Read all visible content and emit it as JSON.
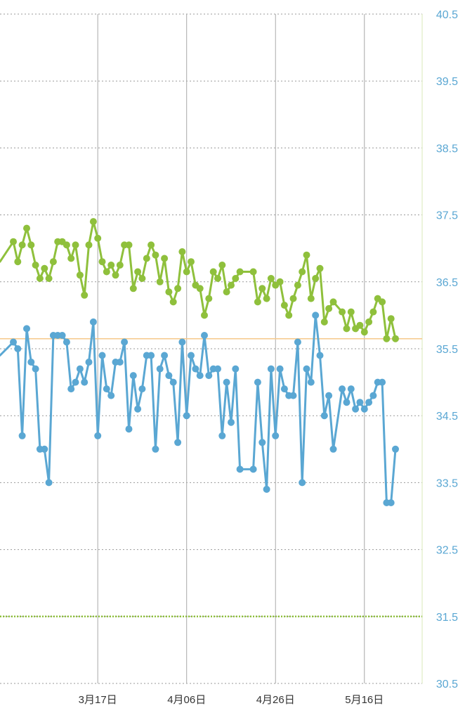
{
  "chart_data": {
    "type": "line",
    "x_axis": {
      "type": "date",
      "start": "2024-02-24",
      "end": "2024-05-29",
      "tick_dates": [
        "2024-03-17",
        "2024-04-06",
        "2024-04-26",
        "2024-05-16"
      ],
      "tick_labels": [
        "3月17日",
        "4月06日",
        "4月26日",
        "5月16日"
      ]
    },
    "y_axis": {
      "position": "right",
      "range": [
        30.5,
        40.5
      ],
      "ticks": [
        30.5,
        31.5,
        32.5,
        33.5,
        34.5,
        35.5,
        36.5,
        37.5,
        38.5,
        39.5,
        40.5
      ],
      "tick_labels": [
        "30.5",
        "31.5",
        "32.5",
        "33.5",
        "34.5",
        "35.5",
        "36.5",
        "37.5",
        "38.5",
        "39.5",
        "40.5"
      ]
    },
    "grid": {
      "horizontal": "dotted",
      "vertical": "solid at x ticks"
    },
    "reference_lines": [
      {
        "y": 35.65,
        "color": "#f6c98a",
        "style": "solid"
      },
      {
        "y": 31.5,
        "color": "#8fc03c",
        "style": "dotted"
      }
    ],
    "series": [
      {
        "color": "#8fc03c",
        "points": [
          [
            "2024-02-24",
            36.8
          ],
          [
            "2024-02-27",
            37.1
          ],
          [
            "2024-02-28",
            36.8
          ],
          [
            "2024-02-29",
            37.05
          ],
          [
            "2024-03-01",
            37.3
          ],
          [
            "2024-03-02",
            37.05
          ],
          [
            "2024-03-03",
            36.75
          ],
          [
            "2024-03-04",
            36.55
          ],
          [
            "2024-03-05",
            36.7
          ],
          [
            "2024-03-06",
            36.55
          ],
          [
            "2024-03-07",
            36.8
          ],
          [
            "2024-03-08",
            37.1
          ],
          [
            "2024-03-09",
            37.1
          ],
          [
            "2024-03-10",
            37.05
          ],
          [
            "2024-03-11",
            36.85
          ],
          [
            "2024-03-12",
            37.05
          ],
          [
            "2024-03-13",
            36.6
          ],
          [
            "2024-03-14",
            36.3
          ],
          [
            "2024-03-15",
            37.05
          ],
          [
            "2024-03-16",
            37.4
          ],
          [
            "2024-03-17",
            37.15
          ],
          [
            "2024-03-18",
            36.8
          ],
          [
            "2024-03-19",
            36.65
          ],
          [
            "2024-03-20",
            36.75
          ],
          [
            "2024-03-21",
            36.6
          ],
          [
            "2024-03-22",
            36.75
          ],
          [
            "2024-03-23",
            37.05
          ],
          [
            "2024-03-24",
            37.05
          ],
          [
            "2024-03-25",
            36.4
          ],
          [
            "2024-03-26",
            36.65
          ],
          [
            "2024-03-27",
            36.55
          ],
          [
            "2024-03-28",
            36.85
          ],
          [
            "2024-03-29",
            37.05
          ],
          [
            "2024-03-30",
            36.9
          ],
          [
            "2024-03-31",
            36.5
          ],
          [
            "2024-04-01",
            36.85
          ],
          [
            "2024-04-02",
            36.35
          ],
          [
            "2024-04-03",
            36.2
          ],
          [
            "2024-04-04",
            36.4
          ],
          [
            "2024-04-05",
            36.95
          ],
          [
            "2024-04-06",
            36.65
          ],
          [
            "2024-04-07",
            36.8
          ],
          [
            "2024-04-08",
            36.45
          ],
          [
            "2024-04-09",
            36.4
          ],
          [
            "2024-04-10",
            36.0
          ],
          [
            "2024-04-11",
            36.25
          ],
          [
            "2024-04-12",
            36.65
          ],
          [
            "2024-04-13",
            36.55
          ],
          [
            "2024-04-14",
            36.75
          ],
          [
            "2024-04-15",
            36.35
          ],
          [
            "2024-04-16",
            36.45
          ],
          [
            "2024-04-17",
            36.55
          ],
          [
            "2024-04-18",
            36.65
          ],
          [
            "2024-04-21",
            36.65
          ],
          [
            "2024-04-22",
            36.2
          ],
          [
            "2024-04-23",
            36.4
          ],
          [
            "2024-04-24",
            36.25
          ],
          [
            "2024-04-25",
            36.55
          ],
          [
            "2024-04-26",
            36.45
          ],
          [
            "2024-04-27",
            36.5
          ],
          [
            "2024-04-28",
            36.15
          ],
          [
            "2024-04-29",
            36.0
          ],
          [
            "2024-04-30",
            36.25
          ],
          [
            "2024-05-01",
            36.45
          ],
          [
            "2024-05-02",
            36.65
          ],
          [
            "2024-05-03",
            36.9
          ],
          [
            "2024-05-04",
            36.25
          ],
          [
            "2024-05-05",
            36.55
          ],
          [
            "2024-05-06",
            36.7
          ],
          [
            "2024-05-07",
            35.9
          ],
          [
            "2024-05-08",
            36.1
          ],
          [
            "2024-05-09",
            36.2
          ],
          [
            "2024-05-11",
            36.05
          ],
          [
            "2024-05-12",
            35.8
          ],
          [
            "2024-05-13",
            36.05
          ],
          [
            "2024-05-14",
            35.8
          ],
          [
            "2024-05-15",
            35.85
          ],
          [
            "2024-05-16",
            35.75
          ],
          [
            "2024-05-17",
            35.9
          ],
          [
            "2024-05-18",
            36.05
          ],
          [
            "2024-05-19",
            36.25
          ],
          [
            "2024-05-20",
            36.2
          ],
          [
            "2024-05-21",
            35.65
          ],
          [
            "2024-05-22",
            35.95
          ],
          [
            "2024-05-23",
            35.65
          ]
        ]
      },
      {
        "color": "#5aa7d3",
        "points": [
          [
            "2024-02-24",
            35.4
          ],
          [
            "2024-02-27",
            35.6
          ],
          [
            "2024-02-28",
            35.5
          ],
          [
            "2024-02-29",
            34.2
          ],
          [
            "2024-03-01",
            35.8
          ],
          [
            "2024-03-02",
            35.3
          ],
          [
            "2024-03-03",
            35.2
          ],
          [
            "2024-03-04",
            34.0
          ],
          [
            "2024-03-05",
            34.0
          ],
          [
            "2024-03-06",
            33.5
          ],
          [
            "2024-03-07",
            35.7
          ],
          [
            "2024-03-08",
            35.7
          ],
          [
            "2024-03-09",
            35.7
          ],
          [
            "2024-03-10",
            35.6
          ],
          [
            "2024-03-11",
            34.9
          ],
          [
            "2024-03-12",
            35.0
          ],
          [
            "2024-03-13",
            35.2
          ],
          [
            "2024-03-14",
            35.0
          ],
          [
            "2024-03-15",
            35.3
          ],
          [
            "2024-03-16",
            35.9
          ],
          [
            "2024-03-17",
            34.2
          ],
          [
            "2024-03-18",
            35.4
          ],
          [
            "2024-03-19",
            34.9
          ],
          [
            "2024-03-20",
            34.8
          ],
          [
            "2024-03-21",
            35.3
          ],
          [
            "2024-03-22",
            35.3
          ],
          [
            "2024-03-23",
            35.6
          ],
          [
            "2024-03-24",
            34.3
          ],
          [
            "2024-03-25",
            35.1
          ],
          [
            "2024-03-26",
            34.6
          ],
          [
            "2024-03-27",
            34.9
          ],
          [
            "2024-03-28",
            35.4
          ],
          [
            "2024-03-29",
            35.4
          ],
          [
            "2024-03-30",
            34.0
          ],
          [
            "2024-03-31",
            35.2
          ],
          [
            "2024-04-01",
            35.4
          ],
          [
            "2024-04-02",
            35.1
          ],
          [
            "2024-04-03",
            35.0
          ],
          [
            "2024-04-04",
            34.1
          ],
          [
            "2024-04-05",
            35.6
          ],
          [
            "2024-04-06",
            34.5
          ],
          [
            "2024-04-07",
            35.4
          ],
          [
            "2024-04-08",
            35.2
          ],
          [
            "2024-04-09",
            35.1
          ],
          [
            "2024-04-10",
            35.7
          ],
          [
            "2024-04-11",
            35.1
          ],
          [
            "2024-04-12",
            35.2
          ],
          [
            "2024-04-13",
            35.2
          ],
          [
            "2024-04-14",
            34.2
          ],
          [
            "2024-04-15",
            35.0
          ],
          [
            "2024-04-16",
            34.4
          ],
          [
            "2024-04-17",
            35.2
          ],
          [
            "2024-04-18",
            33.7
          ],
          [
            "2024-04-21",
            33.7
          ],
          [
            "2024-04-22",
            35.0
          ],
          [
            "2024-04-23",
            34.1
          ],
          [
            "2024-04-24",
            33.4
          ],
          [
            "2024-04-25",
            35.2
          ],
          [
            "2024-04-26",
            34.2
          ],
          [
            "2024-04-27",
            35.2
          ],
          [
            "2024-04-28",
            34.9
          ],
          [
            "2024-04-29",
            34.8
          ],
          [
            "2024-04-30",
            34.8
          ],
          [
            "2024-05-01",
            35.6
          ],
          [
            "2024-05-02",
            33.5
          ],
          [
            "2024-05-03",
            35.2
          ],
          [
            "2024-05-04",
            35.0
          ],
          [
            "2024-05-05",
            36.0
          ],
          [
            "2024-05-06",
            35.4
          ],
          [
            "2024-05-07",
            34.5
          ],
          [
            "2024-05-08",
            34.8
          ],
          [
            "2024-05-09",
            34.0
          ],
          [
            "2024-05-11",
            34.9
          ],
          [
            "2024-05-12",
            34.7
          ],
          [
            "2024-05-13",
            34.9
          ],
          [
            "2024-05-14",
            34.6
          ],
          [
            "2024-05-15",
            34.7
          ],
          [
            "2024-05-16",
            34.6
          ],
          [
            "2024-05-17",
            34.7
          ],
          [
            "2024-05-18",
            34.8
          ],
          [
            "2024-05-19",
            35.0
          ],
          [
            "2024-05-20",
            35.0
          ],
          [
            "2024-05-21",
            33.2
          ],
          [
            "2024-05-22",
            33.2
          ],
          [
            "2024-05-23",
            34.0
          ]
        ]
      }
    ]
  }
}
